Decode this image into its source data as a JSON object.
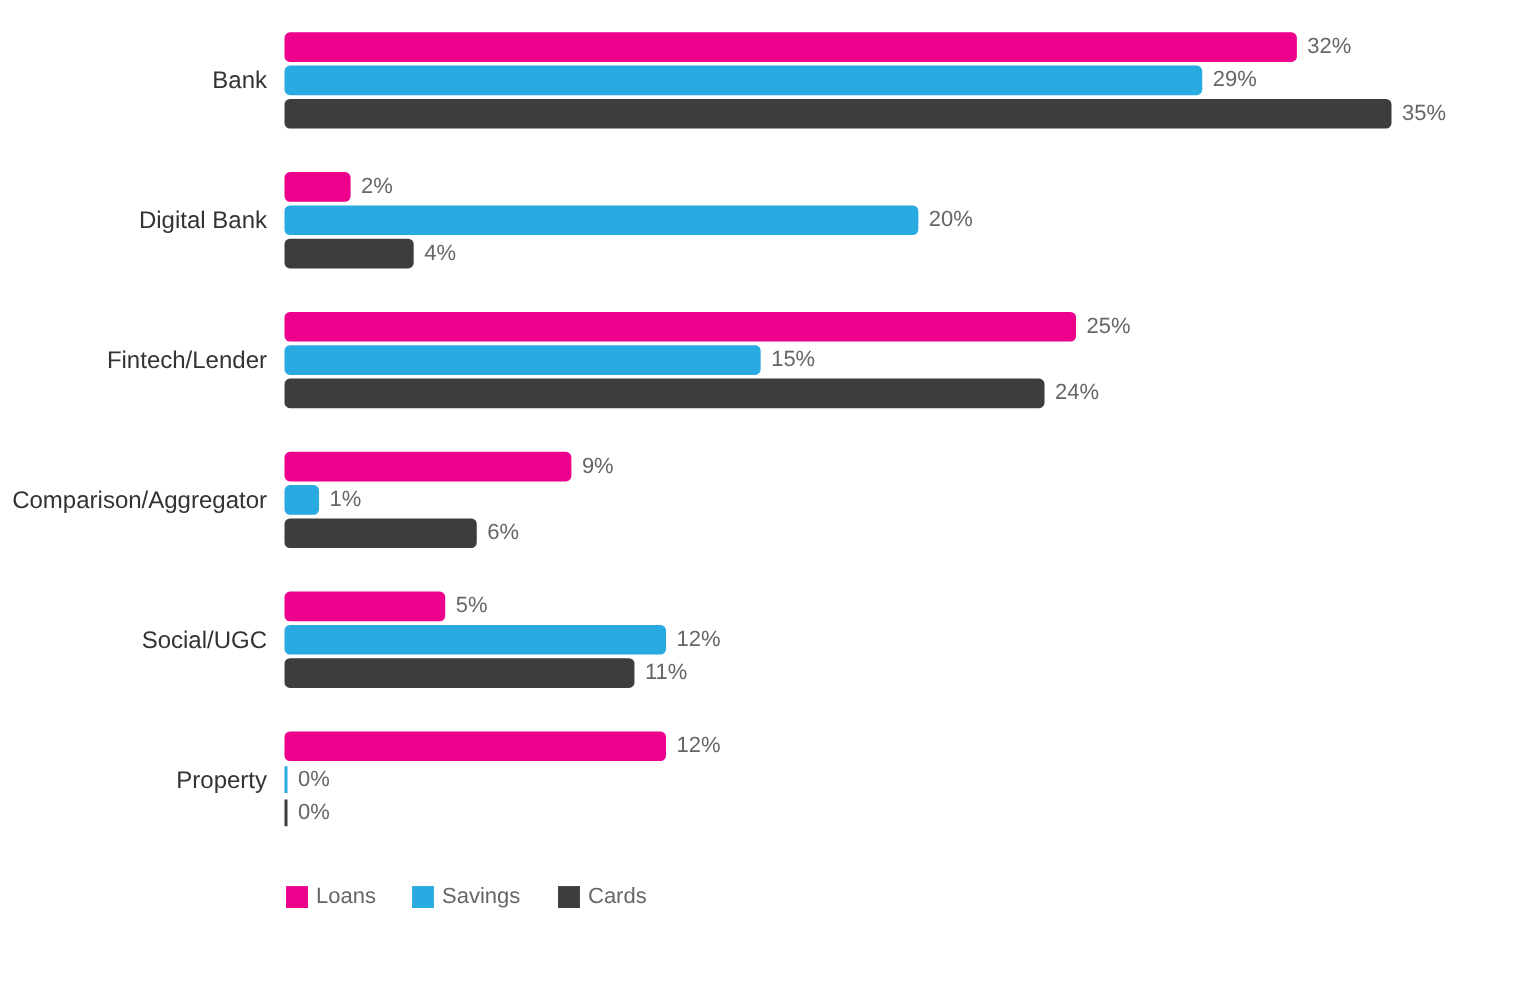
{
  "chart_data": {
    "type": "bar",
    "orientation": "horizontal",
    "categories": [
      "Bank",
      "Digital Bank",
      "Fintech/Lender",
      "Comparison/Aggregator",
      "Social/UGC",
      "Property"
    ],
    "series": [
      {
        "name": "Loans",
        "color": "#ec008c",
        "values": [
          32,
          2,
          25,
          9,
          5,
          12
        ],
        "value_labels": [
          "32%",
          "2%",
          "25%",
          "9%",
          "5%",
          "12%"
        ]
      },
      {
        "name": "Savings",
        "color": "#29abe2",
        "values": [
          29,
          20,
          15,
          1,
          12,
          0
        ],
        "value_labels": [
          "29%",
          "20%",
          "15%",
          "1%",
          "12%",
          "0%"
        ]
      },
      {
        "name": "Cards",
        "color": "#3d3d3d",
        "values": [
          35,
          4,
          24,
          6,
          11,
          0
        ],
        "value_labels": [
          "35%",
          "4%",
          "24%",
          "6%",
          "11%",
          "0%"
        ]
      }
    ],
    "legend": "bottom left",
    "grid": false
  }
}
